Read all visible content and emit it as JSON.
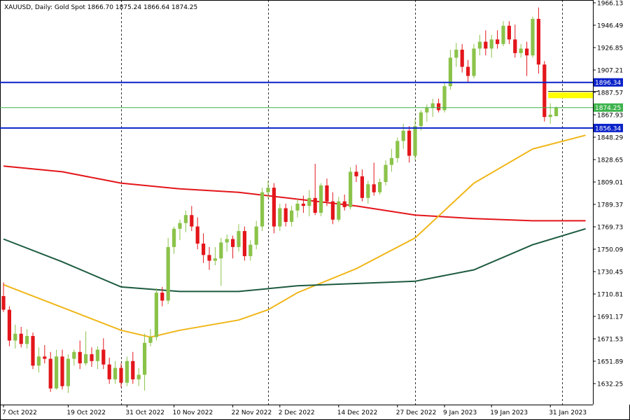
{
  "header": {
    "symbol": "XAUUSD",
    "timeframe": "Daily",
    "instrument": "Gold Spot",
    "ohlc": "1866.70 1875.24 1866.64 1874.25"
  },
  "chart_data": {
    "type": "candlestick",
    "colors": {
      "up": "#8bc34a",
      "down": "#e3161b",
      "grid": "#000000"
    },
    "grid": true,
    "ylim": [
      1617.9,
      1966.13
    ],
    "yticks": [
      "1966.13",
      "1946.49",
      "1926.85",
      "1907.21",
      "1887.57",
      "1867.93",
      "1848.29",
      "1828.65",
      "1809.01",
      "1789.37",
      "1769.73",
      "1750.09",
      "1730.45",
      "1710.81",
      "1691.17",
      "1671.53",
      "1651.89",
      "1632.25"
    ],
    "xticks": [
      {
        "bar": 0,
        "label": "7 Oct 2022"
      },
      {
        "bar": 11,
        "label": "19 Oct 2022"
      },
      {
        "bar": 21,
        "label": "31 Oct 2022"
      },
      {
        "bar": 29,
        "label": "10 Nov 2022"
      },
      {
        "bar": 39,
        "label": "22 Nov 2022"
      },
      {
        "bar": 47,
        "label": "2 Dec 2022"
      },
      {
        "bar": 57,
        "label": "14 Dec 2022"
      },
      {
        "bar": 67,
        "label": "27 Dec 2022"
      },
      {
        "bar": 75,
        "label": "9 Jan 2023"
      },
      {
        "bar": 83,
        "label": "19 Jan 2023"
      },
      {
        "bar": 93,
        "label": "31 Jan 2023"
      }
    ],
    "vlines": [
      20,
      45,
      70,
      95
    ],
    "candles": [
      [
        1709.0,
        1721.0,
        1695.0,
        1697.0
      ],
      [
        1697.0,
        1700.0,
        1665.0,
        1670.0
      ],
      [
        1670.0,
        1684.0,
        1663.0,
        1676.0
      ],
      [
        1676.0,
        1682.0,
        1664.0,
        1667.0
      ],
      [
        1667.0,
        1680.0,
        1663.0,
        1674.0
      ],
      [
        1674.0,
        1677.0,
        1645.0,
        1648.0
      ],
      [
        1648.0,
        1664.0,
        1642.0,
        1656.0
      ],
      [
        1656.0,
        1666.0,
        1650.0,
        1654.0
      ],
      [
        1654.0,
        1660.0,
        1625.0,
        1628.0
      ],
      [
        1628.0,
        1662.0,
        1627.0,
        1656.0
      ],
      [
        1656.0,
        1662.0,
        1627.0,
        1630.0
      ],
      [
        1630.0,
        1658.0,
        1624.0,
        1654.0
      ],
      [
        1654.0,
        1662.0,
        1648.0,
        1660.0
      ],
      [
        1660.0,
        1670.0,
        1645.0,
        1650.0
      ],
      [
        1650.0,
        1678.0,
        1648.0,
        1658.0
      ],
      [
        1658.0,
        1664.0,
        1647.0,
        1652.0
      ],
      [
        1652.0,
        1665.0,
        1645.0,
        1662.0
      ],
      [
        1662.0,
        1672.0,
        1645.0,
        1649.0
      ],
      [
        1649.0,
        1655.0,
        1632.0,
        1636.0
      ],
      [
        1636.0,
        1652.0,
        1632.0,
        1646.0
      ],
      [
        1646.0,
        1650.0,
        1629.0,
        1633.0
      ],
      [
        1633.0,
        1656.0,
        1630.0,
        1652.0
      ],
      [
        1652.0,
        1660.0,
        1632.0,
        1636.0
      ],
      [
        1636.0,
        1646.0,
        1630.0,
        1640.0
      ],
      [
        1640.0,
        1676.0,
        1626.0,
        1668.0
      ],
      [
        1668.0,
        1680.0,
        1665.0,
        1673.0
      ],
      [
        1673.0,
        1716.0,
        1670.0,
        1712.0
      ],
      [
        1712.0,
        1717.0,
        1700.0,
        1705.0
      ],
      [
        1705.0,
        1760.0,
        1702.0,
        1752.0
      ],
      [
        1752.0,
        1770.0,
        1746.0,
        1768.0
      ],
      [
        1768.0,
        1776.0,
        1758.0,
        1773.0
      ],
      [
        1773.0,
        1784.0,
        1765.0,
        1780.0
      ],
      [
        1780.0,
        1788.0,
        1766.0,
        1770.0
      ],
      [
        1770.0,
        1778.0,
        1750.0,
        1755.0
      ],
      [
        1755.0,
        1764.0,
        1738.0,
        1745.0
      ],
      [
        1745.0,
        1752.0,
        1732.0,
        1740.0
      ],
      [
        1740.0,
        1752.0,
        1736.0,
        1742.0
      ],
      [
        1742.0,
        1760.0,
        1718.0,
        1756.0
      ],
      [
        1756.0,
        1763.0,
        1748.0,
        1759.0
      ],
      [
        1759.0,
        1762.0,
        1742.0,
        1752.0
      ],
      [
        1752.0,
        1772.0,
        1748.0,
        1766.0
      ],
      [
        1766.0,
        1770.0,
        1740.0,
        1744.0
      ],
      [
        1744.0,
        1758.0,
        1740.0,
        1754.0
      ],
      [
        1754.0,
        1775.0,
        1750.0,
        1770.0
      ],
      [
        1770.0,
        1804.0,
        1766.0,
        1800.0
      ],
      [
        1800.0,
        1810.0,
        1795.0,
        1804.0
      ],
      [
        1804.0,
        1808.0,
        1764.0,
        1770.0
      ],
      [
        1770.0,
        1790.0,
        1766.0,
        1786.0
      ],
      [
        1786.0,
        1790.0,
        1770.0,
        1774.0
      ],
      [
        1774.0,
        1788.0,
        1770.0,
        1784.0
      ],
      [
        1784.0,
        1794.0,
        1778.0,
        1790.0
      ],
      [
        1790.0,
        1797.0,
        1782.0,
        1788.0
      ],
      [
        1788.0,
        1802.0,
        1779.0,
        1795.0
      ],
      [
        1795.0,
        1825.0,
        1780.0,
        1782.0
      ],
      [
        1782.0,
        1808.0,
        1779.0,
        1806.0
      ],
      [
        1806.0,
        1812.0,
        1788.0,
        1792.0
      ],
      [
        1792.0,
        1800.0,
        1772.0,
        1776.0
      ],
      [
        1776.0,
        1796.0,
        1774.0,
        1792.0
      ],
      [
        1792.0,
        1798.0,
        1784.0,
        1787.0
      ],
      [
        1787.0,
        1822.0,
        1785.0,
        1818.0
      ],
      [
        1818.0,
        1824.0,
        1809.0,
        1814.0
      ],
      [
        1814.0,
        1820.0,
        1792.0,
        1795.0
      ],
      [
        1795.0,
        1810.0,
        1790.0,
        1807.0
      ],
      [
        1807.0,
        1826.0,
        1797.0,
        1800.0
      ],
      [
        1800.0,
        1812.0,
        1798.0,
        1809.0
      ],
      [
        1809.0,
        1828.0,
        1806.0,
        1824.0
      ],
      [
        1824.0,
        1838.0,
        1818.0,
        1830.0
      ],
      [
        1830.0,
        1848.0,
        1826.0,
        1845.0
      ],
      [
        1845.0,
        1860.0,
        1838.0,
        1854.0
      ],
      [
        1854.0,
        1858.0,
        1826.0,
        1832.0
      ],
      [
        1832.0,
        1864.0,
        1828.0,
        1858.0
      ],
      [
        1858.0,
        1872.0,
        1854.0,
        1870.0
      ],
      [
        1870.0,
        1877.0,
        1862.0,
        1874.0
      ],
      [
        1874.0,
        1882.0,
        1866.0,
        1878.0
      ],
      [
        1878.0,
        1882.0,
        1870.0,
        1872.0
      ],
      [
        1872.0,
        1896.0,
        1870.0,
        1893.0
      ],
      [
        1893.0,
        1925.0,
        1890.0,
        1918.0
      ],
      [
        1918.0,
        1931.0,
        1910.0,
        1925.0
      ],
      [
        1925.0,
        1930.0,
        1905.0,
        1910.0
      ],
      [
        1910.0,
        1916.0,
        1896.0,
        1902.0
      ],
      [
        1902.0,
        1930.0,
        1900.0,
        1926.0
      ],
      [
        1926.0,
        1938.0,
        1920.0,
        1932.0
      ],
      [
        1932.0,
        1942.0,
        1920.0,
        1926.0
      ],
      [
        1926.0,
        1938.0,
        1918.0,
        1934.0
      ],
      [
        1934.0,
        1942.0,
        1926.0,
        1930.0
      ],
      [
        1930.0,
        1950.0,
        1928.0,
        1946.0
      ],
      [
        1946.0,
        1950.0,
        1930.0,
        1934.0
      ],
      [
        1934.0,
        1947.0,
        1918.0,
        1922.0
      ],
      [
        1922.0,
        1930.0,
        1918.0,
        1926.0
      ],
      [
        1926.0,
        1932.0,
        1902.0,
        1920.0
      ],
      [
        1920.0,
        1954.0,
        1918.0,
        1952.0
      ],
      [
        1952.0,
        1962.0,
        1904.0,
        1912.0
      ],
      [
        1912.0,
        1915.0,
        1862.0,
        1866.0
      ],
      [
        1866.0,
        1878.0,
        1860.0,
        1868.0
      ],
      [
        1866.7,
        1875.24,
        1866.64,
        1874.25
      ]
    ],
    "ma_lines": [
      {
        "color": "#e3161b",
        "points": [
          [
            0,
            1823
          ],
          [
            10,
            1818
          ],
          [
            20,
            1808
          ],
          [
            30,
            1803
          ],
          [
            40,
            1800
          ],
          [
            50,
            1794
          ],
          [
            60,
            1788
          ],
          [
            70,
            1780
          ],
          [
            80,
            1777
          ],
          [
            90,
            1775
          ],
          [
            99,
            1775
          ]
        ]
      },
      {
        "color": "#f0b619",
        "points": [
          [
            0,
            1719
          ],
          [
            10,
            1699
          ],
          [
            20,
            1679
          ],
          [
            25,
            1673
          ],
          [
            30,
            1679
          ],
          [
            40,
            1688
          ],
          [
            45,
            1697
          ],
          [
            50,
            1712
          ],
          [
            60,
            1733
          ],
          [
            70,
            1760
          ],
          [
            80,
            1808
          ],
          [
            90,
            1838
          ],
          [
            99,
            1850
          ]
        ]
      },
      {
        "color": "#1d5b3f",
        "points": [
          [
            0,
            1759
          ],
          [
            10,
            1739
          ],
          [
            20,
            1717
          ],
          [
            30,
            1713
          ],
          [
            40,
            1713
          ],
          [
            50,
            1718
          ],
          [
            60,
            1720
          ],
          [
            70,
            1722
          ],
          [
            80,
            1732
          ],
          [
            90,
            1754
          ],
          [
            99,
            1768
          ]
        ]
      }
    ],
    "levels": [
      {
        "value": 1896.34,
        "label": "1896.34",
        "color": "#0a22c9",
        "width": 2
      },
      {
        "value": 1856.34,
        "label": "1856.34",
        "color": "#0a22c9",
        "width": 2
      },
      {
        "value": 1874.25,
        "label": "1874.25",
        "color": "#3db34b",
        "width": 1
      }
    ],
    "zone": {
      "from_bar": 93,
      "to_bar": 100,
      "top": 1887.5,
      "bottom": 1882.5,
      "color": "#ffff00"
    }
  }
}
